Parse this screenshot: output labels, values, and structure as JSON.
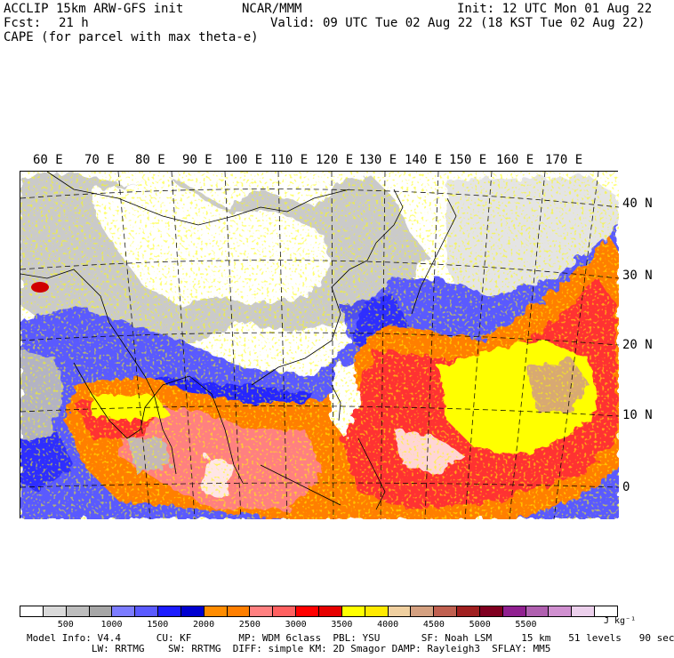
{
  "header": {
    "model": "ACCLIP 15km ARW-GFS init",
    "org": "NCAR/MMM",
    "init": "Init: 12 UTC Mon 01 Aug 22",
    "fcst_label": "Fcst:",
    "fcst_value": "21 h",
    "valid": "Valid: 09 UTC Tue 02 Aug 22 (18 KST Tue 02 Aug 22)",
    "field": "CAPE (for parcel with max theta-e)"
  },
  "map": {
    "lon_labels": [
      "60 E",
      "70 E",
      "80 E",
      "90 E",
      "100 E",
      "110 E",
      "120 E",
      "130 E",
      "140 E",
      "150 E",
      "160 E",
      "170 E"
    ],
    "lat_labels": [
      "40 N",
      "30 N",
      "20 N",
      "10 N",
      "0"
    ]
  },
  "colorbar": {
    "colors": [
      "#ffffff",
      "#d9d9d9",
      "#bdbdbd",
      "#a6a6a6",
      "#7c7cff",
      "#5a5aff",
      "#1c1cff",
      "#0000d0",
      "#ff8c00",
      "#ff7f00",
      "#ff8080",
      "#ff6060",
      "#ff0000",
      "#e60000",
      "#ffff00",
      "#ffea00",
      "#f0d0a0",
      "#d4a080",
      "#c06050",
      "#a02020",
      "#800020",
      "#902090",
      "#b060b0",
      "#d090d0",
      "#ecd0ec",
      "#ffffff"
    ],
    "ticks": [
      "500",
      "1000",
      "1500",
      "2000",
      "2500",
      "3000",
      "3500",
      "4000",
      "4500",
      "5000",
      "5500"
    ],
    "unit": "J kg⁻¹"
  },
  "footer": {
    "line1": "Model Info: V4.4      CU: KF        MP: WDM 6class  PBL: YSU       SF: Noah LSM     15 km   51 levels   90 sec",
    "line2": "           LW: RRTMG    SW: RRTMG  DIFF: simple KM: 2D Smagor DAMP: Rayleigh3  SFLAY: MM5"
  }
}
